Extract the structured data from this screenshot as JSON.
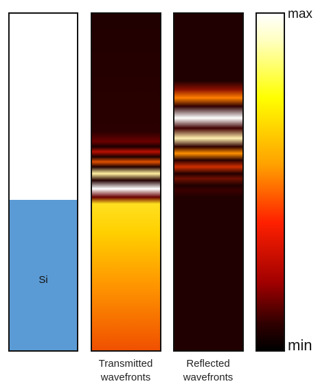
{
  "panels": {
    "substrate": {
      "label": "Si",
      "fill_color": "#5b9bd5"
    },
    "transmitted": {
      "caption_line1": "Transmitted",
      "caption_line2": "wavefronts"
    },
    "reflected": {
      "caption_line1": "Reflected",
      "caption_line2": "wavefronts"
    }
  },
  "colorbar": {
    "colormap": "hot",
    "max_label": "max",
    "min_label": "min"
  }
}
